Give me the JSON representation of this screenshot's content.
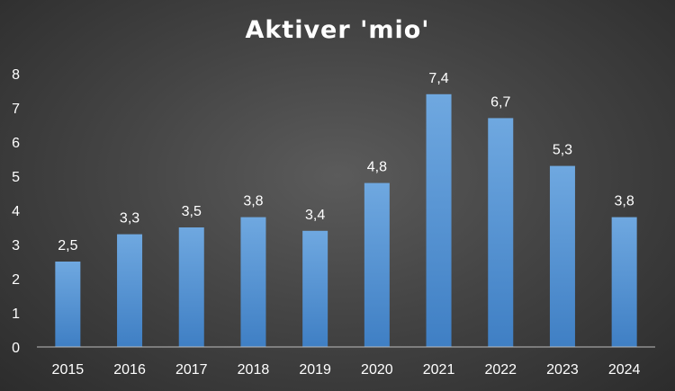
{
  "chart_data": {
    "type": "bar",
    "title": "Aktiver 'mio'",
    "xlabel": "",
    "ylabel": "",
    "categories": [
      "2015",
      "2016",
      "2017",
      "2018",
      "2019",
      "2020",
      "2021",
      "2022",
      "2023",
      "2024"
    ],
    "values": [
      2.5,
      3.3,
      3.5,
      3.8,
      3.4,
      4.8,
      7.4,
      6.7,
      5.3,
      3.8
    ],
    "data_labels": [
      "2,5",
      "3,3",
      "3,5",
      "3,8",
      "3,4",
      "4,8",
      "7,4",
      "6,7",
      "5,3",
      "3,8"
    ],
    "yticks": [
      "0",
      "1",
      "2",
      "3",
      "4",
      "5",
      "6",
      "7",
      "8"
    ],
    "ylim": [
      0,
      8
    ],
    "grid": false,
    "legend": "none",
    "colors": {
      "bar_top": "#6fa8e0",
      "bar_bottom": "#3f7fc4",
      "text": "#ffffff",
      "axis": "#bdbdbd",
      "background": "#3d3d3d"
    }
  }
}
